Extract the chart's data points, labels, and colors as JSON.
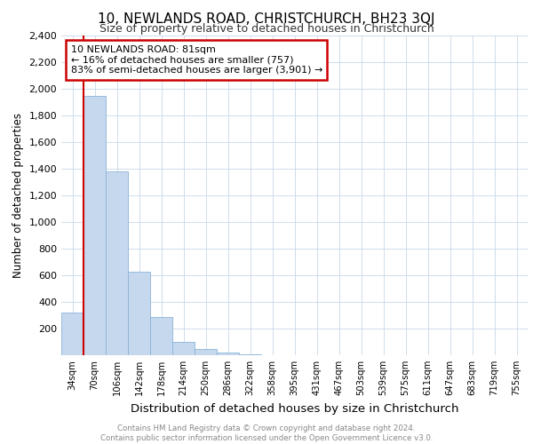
{
  "title_line1": "10, NEWLANDS ROAD, CHRISTCHURCH, BH23 3QJ",
  "title_line2": "Size of property relative to detached houses in Christchurch",
  "xlabel": "Distribution of detached houses by size in Christchurch",
  "ylabel": "Number of detached properties",
  "bar_labels": [
    "34sqm",
    "70sqm",
    "106sqm",
    "142sqm",
    "178sqm",
    "214sqm",
    "250sqm",
    "286sqm",
    "322sqm",
    "358sqm",
    "395sqm",
    "431sqm",
    "467sqm",
    "503sqm",
    "539sqm",
    "575sqm",
    "611sqm",
    "647sqm",
    "683sqm",
    "719sqm",
    "755sqm"
  ],
  "bar_values": [
    320,
    1950,
    1380,
    630,
    285,
    100,
    45,
    20,
    10,
    0,
    0,
    0,
    0,
    0,
    0,
    0,
    0,
    0,
    0,
    0,
    0
  ],
  "bar_color": "#c5d8ee",
  "bar_edge_color": "#8ab4d8",
  "property_line_x": 0.5,
  "annotation_text": "10 NEWLANDS ROAD: 81sqm\n← 16% of detached houses are smaller (757)\n83% of semi-detached houses are larger (3,901) →",
  "annotation_box_color": "#ffffff",
  "annotation_box_edge": "#cc0000",
  "vline_color": "#cc0000",
  "ylim": [
    0,
    2400
  ],
  "yticks": [
    0,
    200,
    400,
    600,
    800,
    1000,
    1200,
    1400,
    1600,
    1800,
    2000,
    2200,
    2400
  ],
  "footer_text": "Contains HM Land Registry data © Crown copyright and database right 2024.\nContains public sector information licensed under the Open Government Licence v3.0.",
  "bg_color": "#ffffff",
  "grid_color": "#c8d8e8"
}
